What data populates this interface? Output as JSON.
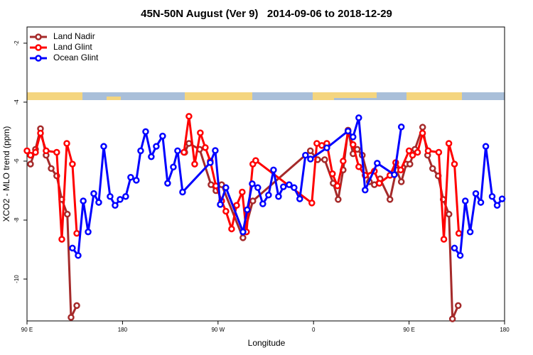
{
  "chart_data": {
    "type": "line",
    "title": "45N-50N August (Ver 9)   2014-09-06 to 2018-12-29",
    "x_label": "Longitude",
    "y_label": "XCO2 - MLO trend (ppm)",
    "xlim": [
      90,
      540
    ],
    "ylim": [
      -11.42,
      -1.45
    ],
    "xticks": [
      {
        "value": 90,
        "label": "90 E"
      },
      180,
      {
        "value": 270,
        "label": "90 W"
      },
      {
        "value": 360,
        "label": "0"
      },
      {
        "value": 450,
        "label": "90 E"
      },
      {
        "value": 540,
        "label": "180"
      }
    ],
    "yticks": [
      -10,
      -8,
      -6,
      -4,
      -2
    ],
    "legend": "top-left",
    "series": [
      {
        "name": "Land Nadir",
        "color": "#a52a2a",
        "x": [
          93.3,
          98,
          102.7,
          108,
          112.8,
          118,
          122.8,
          128,
          131.5,
          136.9,
          null,
          238.6,
          242.6,
          252.7,
          263.4,
          268,
          273.4,
          293.5,
          302.8,
          357,
          363.8,
          370.5,
          378.5,
          383.2,
          387.9,
          392.5,
          397.2,
          401.2,
          405.9,
          412.6,
          417.3,
          422.7,
          432,
          438,
          442.7,
          447.4,
          450.8,
          455.5,
          462.8,
          467.5,
          472.2,
          477.5,
          482.2,
          487.6,
          490.9,
          496.3
        ],
        "values": [
          -6.1,
          -5.6,
          -4.9,
          -5.8,
          -6.25,
          -6.5,
          -7.3,
          -7.8,
          -11.3,
          -10.9,
          null,
          -5.7,
          -5.4,
          -5.6,
          -6.8,
          -7.0,
          -6.8,
          -8.6,
          -7.35,
          -5.65,
          -5.95,
          -5.95,
          -6.75,
          -7.3,
          -6.3,
          -4.95,
          -5.75,
          -5.6,
          -5.8,
          -6.7,
          -6.8,
          -6.6,
          -7.3,
          -6.3,
          -6.7,
          -6.1,
          -6.1,
          -5.6,
          -4.85,
          -5.8,
          -6.25,
          -6.5,
          -7.3,
          -7.8,
          -11.35,
          -10.9
        ]
      },
      {
        "name": "Land Glint",
        "color": "#ff0000",
        "x": [
          90,
          93.3,
          98,
          102.7,
          108,
          118,
          122.8,
          127.5,
          132.8,
          136.9,
          null,
          237.9,
          242.6,
          248,
          253.3,
          258,
          262.7,
          268,
          273.4,
          277.4,
          282.8,
          287.5,
          292.8,
          296.8,
          302.8,
          305.5,
          358.4,
          363.1,
          367.8,
          372.5,
          377.8,
          382.5,
          387.9,
          392.5,
          397.2,
          402.6,
          408.6,
          417.3,
          422,
          432,
          437.4,
          442.1,
          450,
          453.3,
          458,
          462.7,
          468,
          478,
          482.8,
          487.5,
          492.8,
          496.9
        ],
        "values": [
          -5.65,
          -5.8,
          -5.7,
          -5.05,
          -5.65,
          -5.7,
          -8.65,
          -5.4,
          -6.1,
          -8.45,
          null,
          -5.7,
          -4.48,
          -6.1,
          -5.04,
          -5.54,
          -6.0,
          -6.84,
          -7.35,
          -7.7,
          -8.3,
          -7.5,
          -7.05,
          -8.4,
          -6.1,
          -5.98,
          -7.42,
          -5.4,
          -5.47,
          -5.4,
          -6.43,
          -6.84,
          -6.0,
          -5.0,
          -5.44,
          -6.19,
          -6.48,
          -6.34,
          -6.75,
          -6.48,
          -6.05,
          -6.3,
          -5.65,
          -5.8,
          -5.7,
          -5.05,
          -5.65,
          -5.7,
          -8.65,
          -5.4,
          -6.1,
          -8.45
        ]
      },
      {
        "name": "Ocean Glint",
        "color": "#0000ff",
        "x": [
          132.8,
          138.2,
          143,
          147.6,
          152.9,
          157.6,
          162.3,
          168.3,
          173,
          177.7,
          183,
          187.7,
          193,
          197.1,
          201.8,
          207.1,
          211.8,
          217.8,
          222.5,
          227.9,
          231.9,
          236.6,
          262.7,
          267.4,
          272.1,
          277.4,
          293.5,
          297.5,
          302.2,
          307.5,
          312.2,
          317.6,
          322.3,
          327,
          331.6,
          337,
          341.7,
          347,
          352.4,
          357.1,
          372.5,
          392.5,
          397.2,
          402.6,
          408.6,
          420,
          436.1,
          442.7,
          null,
          492.8,
          498.2,
          503,
          507.6,
          512.9,
          517.6,
          522.3,
          528.3,
          533,
          537.7
        ],
        "values": [
          -8.95,
          -9.2,
          -7.35,
          -8.4,
          -7.1,
          -7.4,
          -5.5,
          -7.2,
          -7.5,
          -7.3,
          -7.2,
          -6.55,
          -6.65,
          -5.65,
          -5.0,
          -5.85,
          -5.5,
          -5.15,
          -6.75,
          -6.2,
          -5.65,
          -7.05,
          -6.05,
          -5.64,
          -7.47,
          -6.9,
          -8.4,
          -7.65,
          -6.77,
          -6.9,
          -7.45,
          -7.15,
          -6.3,
          -7.2,
          -6.87,
          -6.8,
          -6.9,
          -7.28,
          -5.8,
          -5.93,
          -5.55,
          -4.98,
          -5.18,
          -4.53,
          -6.98,
          -6.07,
          -6.46,
          -4.84,
          null,
          -8.95,
          -9.2,
          -7.35,
          -8.4,
          -7.1,
          -7.4,
          -5.5,
          -7.2,
          -7.5,
          -7.28
        ]
      }
    ]
  }
}
